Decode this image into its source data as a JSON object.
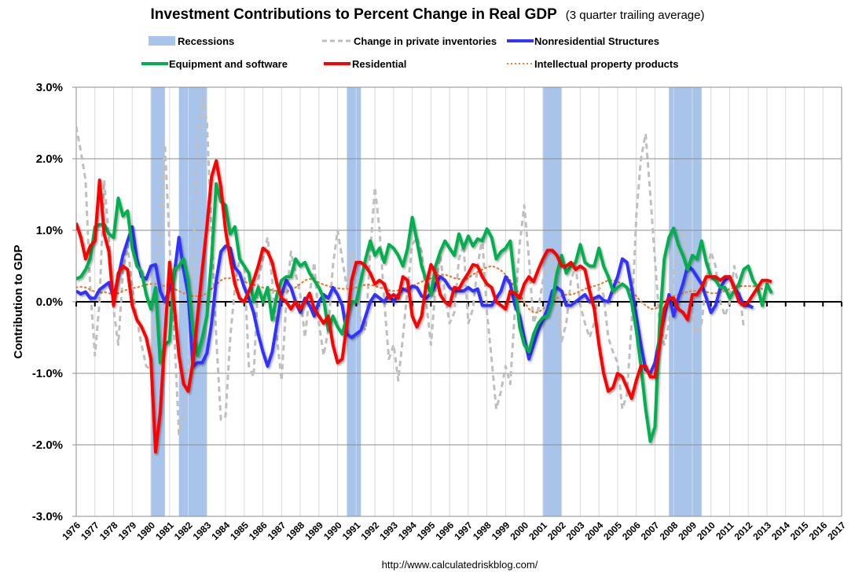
{
  "chart_data": {
    "type": "line",
    "title": "Investment Contributions to Percent Change in Real GDP",
    "subtitle": "(3 quarter trailing average)",
    "xlabel": "",
    "ylabel": "Contribution to GDP",
    "source": "http://www.calculatedriskblog.com/",
    "xlim": [
      1976,
      2017
    ],
    "ylim": [
      -3.0,
      3.0
    ],
    "x_ticks": [
      "1976",
      "1977",
      "1978",
      "1979",
      "1980",
      "1981",
      "1982",
      "1983",
      "1984",
      "1985",
      "1986",
      "1987",
      "1988",
      "1989",
      "1990",
      "1991",
      "1992",
      "1993",
      "1994",
      "1995",
      "1996",
      "1997",
      "1998",
      "1999",
      "2000",
      "2001",
      "2002",
      "2003",
      "2004",
      "2005",
      "2006",
      "2007",
      "2008",
      "2009",
      "2010",
      "2011",
      "2012",
      "2013",
      "2014",
      "2015",
      "2016",
      "2017"
    ],
    "y_ticks": [
      {
        "value": 3.0,
        "label": "3.0%"
      },
      {
        "value": 2.0,
        "label": "2.0%"
      },
      {
        "value": 1.0,
        "label": "1.0%"
      },
      {
        "value": 0.0,
        "label": "0.0%"
      },
      {
        "value": -1.0,
        "label": "-1.0%"
      },
      {
        "value": -2.0,
        "label": "-2.0%"
      },
      {
        "value": -3.0,
        "label": "-3.0%"
      }
    ],
    "grid": "horizontal major + vertical yearly",
    "legend_position": "top",
    "recessions": [
      {
        "start": 1980.0,
        "end": 1980.75
      },
      {
        "start": 1981.5,
        "end": 1983.0
      },
      {
        "start": 1990.5,
        "end": 1991.25
      },
      {
        "start": 2001.0,
        "end": 2002.0
      },
      {
        "start": 2007.75,
        "end": 2009.5
      }
    ],
    "legend": [
      {
        "key": "recessions",
        "label": "Recessions",
        "color": "#a9c4ea",
        "style": "band"
      },
      {
        "key": "inventories",
        "label": "Change in private inventories",
        "color": "#bfbfbf",
        "style": "dashed"
      },
      {
        "key": "nonres",
        "label": "Nonresidential Structures",
        "color": "#3333ff",
        "style": "solid"
      },
      {
        "key": "equipment",
        "label": "Equipment and software",
        "color": "#00b050",
        "style": "solid"
      },
      {
        "key": "residential",
        "label": "Residential",
        "color": "#ff0000",
        "style": "solid"
      },
      {
        "key": "ip",
        "label": "Intellectual property products",
        "color": "#ed7d31",
        "style": "dotted"
      }
    ],
    "x_start": 1976.0,
    "x_step": 0.25,
    "series": [
      {
        "key": "inventories",
        "name": "Change in private inventories",
        "color": "#bfbfbf",
        "values": [
          2.45,
          2.1,
          1.7,
          0.2,
          -0.75,
          0.0,
          1.7,
          0.9,
          -0.1,
          -0.6,
          0.4,
          0.8,
          0.2,
          -0.25,
          -0.6,
          -0.9,
          -0.95,
          0.0,
          1.0,
          2.2,
          0.8,
          -0.4,
          -1.85,
          -1.6,
          -1.1,
          0.5,
          2.2,
          2.85,
          2.5,
          1.0,
          -0.5,
          -1.65,
          -1.6,
          -0.5,
          0.2,
          0.6,
          0.5,
          -0.9,
          -1.05,
          0.3,
          0.6,
          0.9,
          0.3,
          -0.5,
          -1.1,
          0.0,
          0.7,
          0.4,
          0.1,
          -0.5,
          0.1,
          0.55,
          -0.3,
          -0.75,
          -0.4,
          0.5,
          1.0,
          0.6,
          0.2,
          0.7,
          0.35,
          -0.3,
          -0.4,
          0.7,
          1.6,
          1.0,
          0.0,
          -0.8,
          -0.6,
          -1.1,
          -0.5,
          0.2,
          0.8,
          0.9,
          0.7,
          0.0,
          -0.6,
          0.2,
          0.65,
          0.1,
          -0.3,
          -0.15,
          0.6,
          0.8,
          -0.3,
          -0.1,
          0.5,
          0.9,
          -0.15,
          -0.8,
          -1.5,
          -1.25,
          -0.9,
          -1.15,
          -0.1,
          0.8,
          1.35,
          0.6,
          -0.3,
          -0.1,
          0.3,
          0.6,
          0.6,
          -0.1,
          -0.55,
          -0.3,
          0.3,
          0.5,
          -0.05,
          -0.3,
          -0.5,
          -0.3,
          0.2,
          0.1,
          -0.5,
          -0.7,
          -0.85,
          -1.5,
          -1.3,
          -0.3,
          1.2,
          2.0,
          2.35,
          1.5,
          0.6,
          -0.3,
          -0.6,
          -0.3,
          0.4,
          0.7,
          1.0,
          0.6,
          -0.2,
          -0.45,
          -0.3,
          0.3,
          0.7,
          0.5,
          0.0,
          -0.2,
          0.0,
          0.5,
          0.2,
          -0.35
        ]
      },
      {
        "key": "nonres",
        "name": "Nonresidential Structures",
        "color": "#3333ff",
        "values": [
          0.15,
          0.11,
          0.14,
          0.05,
          0.05,
          0.17,
          0.22,
          0.27,
          0.05,
          0.35,
          0.65,
          0.85,
          1.05,
          0.6,
          0.35,
          0.32,
          0.5,
          0.52,
          0.15,
          0.0,
          0.18,
          0.38,
          0.9,
          0.45,
          0.1,
          -0.9,
          -0.85,
          -0.85,
          -0.72,
          -0.3,
          0.3,
          0.7,
          0.78,
          0.75,
          0.48,
          0.4,
          0.2,
          0.05,
          -0.15,
          -0.45,
          -0.7,
          -0.9,
          -0.7,
          -0.3,
          0.1,
          0.3,
          0.2,
          0.0,
          -0.15,
          0.05,
          -0.05,
          -0.2,
          0.0,
          0.1,
          0.05,
          0.2,
          0.1,
          -0.05,
          -0.45,
          -0.5,
          -0.45,
          -0.4,
          -0.2,
          0.0,
          0.1,
          0.05,
          0.0,
          0.1,
          0.0,
          0.1,
          0.18,
          0.15,
          0.22,
          0.2,
          0.08,
          0.05,
          0.12,
          0.25,
          0.35,
          0.3,
          0.2,
          0.15,
          0.15,
          0.15,
          0.2,
          0.15,
          0.18,
          -0.05,
          -0.05,
          -0.05,
          0.05,
          0.15,
          0.35,
          0.25,
          -0.05,
          -0.2,
          -0.5,
          -0.8,
          -0.6,
          -0.4,
          -0.25,
          -0.1,
          0.15,
          0.2,
          0.15,
          -0.05,
          -0.05,
          0.0,
          0.05,
          0.1,
          0.0,
          0.05,
          0.08,
          0.02,
          0.0,
          0.18,
          0.35,
          0.6,
          0.55,
          0.2,
          -0.2,
          -0.6,
          -0.95,
          -1.0,
          -0.85,
          -0.5,
          -0.2,
          0.1,
          -0.2,
          0.05,
          0.25,
          0.5,
          0.45,
          0.35,
          0.25,
          0.05,
          -0.15,
          -0.05,
          0.2,
          0.3,
          0.35,
          0.2,
          0.1,
          -0.05,
          -0.05,
          -0.08
        ]
      },
      {
        "key": "equipment",
        "name": "Equipment and software",
        "color": "#00b050",
        "values": [
          0.32,
          0.35,
          0.45,
          0.6,
          1.05,
          1.08,
          1.08,
          0.95,
          0.9,
          1.45,
          1.2,
          1.27,
          0.75,
          0.5,
          0.42,
          0.1,
          -0.1,
          0.2,
          -0.85,
          -0.6,
          -0.55,
          0.45,
          0.5,
          0.6,
          0.3,
          -0.4,
          -0.75,
          -0.5,
          -0.2,
          0.6,
          1.65,
          1.4,
          1.35,
          0.95,
          1.05,
          0.6,
          0.5,
          0.4,
          0.0,
          0.2,
          0.0,
          0.2,
          -0.25,
          0.1,
          0.3,
          0.35,
          0.35,
          0.6,
          0.5,
          0.55,
          0.4,
          0.3,
          0.2,
          0.05,
          -0.4,
          -0.2,
          -0.35,
          -0.45,
          -0.2,
          0.0,
          0.0,
          0.3,
          0.6,
          0.85,
          0.65,
          0.75,
          0.55,
          0.8,
          0.75,
          0.65,
          0.5,
          0.75,
          1.18,
          0.85,
          0.5,
          0.3,
          0.1,
          0.5,
          0.7,
          0.85,
          0.75,
          0.65,
          0.95,
          0.75,
          0.92,
          0.78,
          0.88,
          0.85,
          1.02,
          0.9,
          0.6,
          0.7,
          0.75,
          0.85,
          0.25,
          -0.35,
          -0.6,
          -0.7,
          -0.45,
          -0.3,
          -0.22,
          -0.2,
          0.0,
          0.4,
          0.65,
          0.4,
          0.5,
          0.55,
          0.8,
          0.55,
          0.5,
          0.5,
          0.75,
          0.5,
          0.35,
          0.15,
          0.2,
          0.25,
          0.2,
          0.0,
          -0.4,
          -0.9,
          -1.5,
          -1.95,
          -1.75,
          -0.3,
          0.6,
          0.9,
          1.03,
          0.8,
          0.65,
          0.45,
          0.65,
          0.6,
          0.85,
          0.55,
          0.35,
          0.3,
          0.2,
          0.2,
          0.05,
          0.15,
          0.25,
          0.45,
          0.5,
          0.3,
          0.2,
          -0.05,
          0.25,
          0.12
        ]
      },
      {
        "key": "residential",
        "name": "Residential",
        "color": "#ff0000",
        "values": [
          1.1,
          0.9,
          0.6,
          0.78,
          0.85,
          1.7,
          0.95,
          0.7,
          -0.05,
          0.4,
          0.5,
          0.45,
          -0.05,
          -0.25,
          -0.35,
          -0.5,
          -0.8,
          -2.1,
          -1.55,
          -0.5,
          0.55,
          -0.05,
          -0.75,
          -1.15,
          -1.25,
          -0.85,
          -0.2,
          0.45,
          1.05,
          1.75,
          1.97,
          1.6,
          1.0,
          0.6,
          0.25,
          0.05,
          0.0,
          0.15,
          0.3,
          0.5,
          0.75,
          0.7,
          0.55,
          0.25,
          0.05,
          0.0,
          -0.1,
          0.0,
          -0.1,
          0.0,
          0.12,
          -0.1,
          -0.2,
          -0.3,
          -0.2,
          -0.6,
          -0.85,
          -0.8,
          -0.3,
          0.3,
          0.55,
          0.55,
          0.5,
          0.4,
          0.25,
          0.3,
          0.25,
          0.05,
          0.1,
          0.05,
          0.35,
          0.3,
          -0.2,
          -0.35,
          -0.2,
          0.25,
          0.52,
          0.4,
          0.1,
          0.0,
          -0.05,
          0.2,
          0.18,
          0.3,
          0.4,
          0.52,
          0.5,
          0.35,
          0.25,
          0.2,
          0.0,
          -0.05,
          -0.1,
          0.15,
          0.12,
          0.05,
          0.25,
          0.35,
          0.28,
          0.45,
          0.6,
          0.72,
          0.72,
          0.65,
          0.5,
          0.5,
          0.55,
          0.45,
          0.5,
          0.45,
          0.15,
          -0.1,
          -0.6,
          -1.0,
          -1.25,
          -1.2,
          -1.0,
          -1.05,
          -1.2,
          -1.35,
          -1.1,
          -0.9,
          -0.9,
          -1.05,
          -1.05,
          -0.6,
          -0.1,
          0.05,
          0.05,
          -0.1,
          -0.15,
          -0.25,
          0.1,
          0.1,
          0.2,
          0.35,
          0.35,
          0.35,
          0.3,
          0.35,
          0.35,
          0.2,
          0.0,
          -0.05,
          0.0,
          0.1,
          0.2,
          0.3,
          0.3,
          0.28
        ]
      },
      {
        "key": "ip",
        "name": "Intellectual property products",
        "color": "#ed7d31",
        "values": [
          0.2,
          0.21,
          0.2,
          0.17,
          0.14,
          0.12,
          0.14,
          0.12,
          0.1,
          0.12,
          0.15,
          0.17,
          0.19,
          0.2,
          0.22,
          0.24,
          0.25,
          0.25,
          0.24,
          0.22,
          0.2,
          0.18,
          0.15,
          0.12,
          0.1,
          0.08,
          0.08,
          0.09,
          0.12,
          0.18,
          0.24,
          0.3,
          0.33,
          0.33,
          0.32,
          0.3,
          0.28,
          0.26,
          0.24,
          0.22,
          0.2,
          0.18,
          0.16,
          0.15,
          0.14,
          0.14,
          0.16,
          0.2,
          0.25,
          0.3,
          0.32,
          0.3,
          0.27,
          0.24,
          0.22,
          0.2,
          0.19,
          0.18,
          0.18,
          0.18,
          0.2,
          0.22,
          0.24,
          0.24,
          0.22,
          0.2,
          0.18,
          0.16,
          0.15,
          0.16,
          0.18,
          0.2,
          0.22,
          0.25,
          0.28,
          0.3,
          0.33,
          0.36,
          0.38,
          0.38,
          0.36,
          0.33,
          0.32,
          0.3,
          0.33,
          0.38,
          0.42,
          0.45,
          0.48,
          0.5,
          0.48,
          0.44,
          0.38,
          0.3,
          0.2,
          0.1,
          0.0,
          -0.1,
          -0.15,
          -0.15,
          -0.1,
          -0.05,
          0.0,
          0.05,
          0.08,
          0.1,
          0.1,
          0.12,
          0.15,
          0.18,
          0.2,
          0.22,
          0.24,
          0.27,
          0.3,
          0.3,
          0.28,
          0.25,
          0.2,
          0.15,
          0.08,
          0.0,
          -0.05,
          -0.1,
          -0.1,
          -0.05,
          0.0,
          0.05,
          0.08,
          0.1,
          0.12,
          0.14,
          0.15,
          0.15,
          0.15,
          0.14,
          0.12,
          0.12,
          0.13,
          0.15,
          0.18,
          0.2,
          0.22,
          0.22,
          0.22,
          0.22,
          0.2,
          0.18
        ]
      }
    ]
  }
}
